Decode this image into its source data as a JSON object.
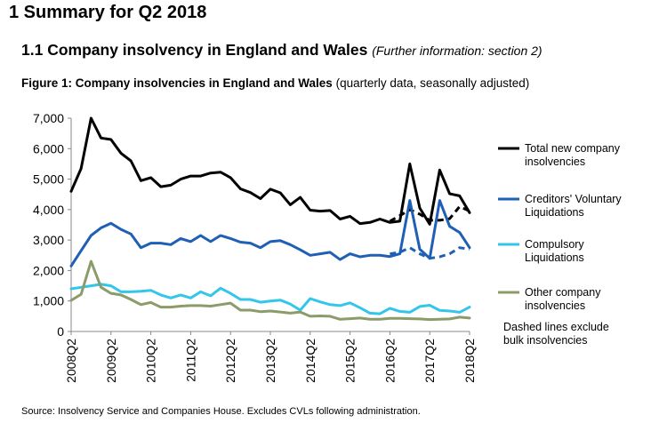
{
  "heading": "1 Summary for Q2 2018",
  "subheading": "1.1 Company insolvency in England and Wales",
  "subheading_note": "(Further information: section 2)",
  "figure_title_bold": "Figure 1: Company insolvencies in England and Wales",
  "figure_title_rest": "(quarterly data, seasonally adjusted)",
  "source": "Source: Insolvency Service and Companies House. Excludes CVLs following administration.",
  "chart_data": {
    "type": "line",
    "x": [
      "2008Q2",
      "2008Q3",
      "2008Q4",
      "2009Q1",
      "2009Q2",
      "2009Q3",
      "2009Q4",
      "2010Q1",
      "2010Q2",
      "2010Q3",
      "2010Q4",
      "2011Q1",
      "2011Q2",
      "2011Q3",
      "2011Q4",
      "2012Q1",
      "2012Q2",
      "2012Q3",
      "2012Q4",
      "2013Q1",
      "2013Q2",
      "2013Q3",
      "2013Q4",
      "2014Q1",
      "2014Q2",
      "2014Q3",
      "2014Q4",
      "2015Q1",
      "2015Q2",
      "2015Q3",
      "2015Q4",
      "2016Q1",
      "2016Q2",
      "2016Q3",
      "2016Q4",
      "2017Q1",
      "2017Q2",
      "2017Q3",
      "2017Q4",
      "2018Q1",
      "2018Q2"
    ],
    "x_tick_labels": [
      "2008Q2",
      "2009Q2",
      "2010Q2",
      "2011Q2",
      "2012Q2",
      "2013Q2",
      "2014Q2",
      "2015Q2",
      "2016Q2",
      "2017Q2",
      "2018Q2"
    ],
    "ylim": [
      0,
      7000
    ],
    "y_ticks": [
      "0",
      "1,000",
      "2,000",
      "3,000",
      "4,000",
      "5,000",
      "6,000",
      "7,000"
    ],
    "grid": false,
    "legend_position": "right",
    "series": [
      {
        "name": "Total new company insolvencies",
        "color": "#000000",
        "style": "solid",
        "values": [
          4600,
          5350,
          7000,
          6350,
          6300,
          5850,
          5600,
          4950,
          5050,
          4750,
          4800,
          5000,
          5100,
          5100,
          5200,
          5230,
          5050,
          4680,
          4560,
          4360,
          4670,
          4550,
          4160,
          4400,
          3980,
          3950,
          3970,
          3690,
          3780,
          3540,
          3580,
          3690,
          3580,
          3620,
          5500,
          4050,
          3520,
          5300,
          4520,
          4450,
          3900
        ]
      },
      {
        "name": "Total new company insolvencies (excluding bulk insolvencies)",
        "color": "#000000",
        "style": "dashed",
        "values": [
          null,
          null,
          null,
          null,
          null,
          null,
          null,
          null,
          null,
          null,
          null,
          null,
          null,
          null,
          null,
          null,
          null,
          null,
          null,
          null,
          null,
          null,
          null,
          null,
          null,
          null,
          null,
          null,
          null,
          null,
          null,
          null,
          3620,
          3800,
          4000,
          3850,
          3650,
          3650,
          3700,
          4100,
          3950
        ]
      },
      {
        "name": "Creditors' Voluntary Liquidations",
        "color": "#1f5fb4",
        "style": "solid",
        "values": [
          2150,
          2650,
          3150,
          3400,
          3550,
          3350,
          3200,
          2750,
          2900,
          2900,
          2850,
          3050,
          2950,
          3150,
          2950,
          3150,
          3050,
          2930,
          2900,
          2750,
          2950,
          2980,
          2850,
          2680,
          2500,
          2550,
          2600,
          2360,
          2550,
          2450,
          2500,
          2500,
          2460,
          2550,
          4300,
          2700,
          2400,
          4300,
          3450,
          3250,
          2750
        ]
      },
      {
        "name": "Creditors' Voluntary Liquidations (excluding bulk insolvencies)",
        "color": "#1f5fb4",
        "style": "dashed",
        "values": [
          null,
          null,
          null,
          null,
          null,
          null,
          null,
          null,
          null,
          null,
          null,
          null,
          null,
          null,
          null,
          null,
          null,
          null,
          null,
          null,
          null,
          null,
          null,
          null,
          null,
          null,
          null,
          null,
          null,
          null,
          null,
          null,
          2550,
          2600,
          2750,
          2550,
          2400,
          2450,
          2550,
          2750,
          2700
        ]
      },
      {
        "name": "Compulsory Liquidations",
        "color": "#33c6ea",
        "style": "solid",
        "values": [
          1400,
          1450,
          1500,
          1550,
          1500,
          1300,
          1300,
          1320,
          1350,
          1200,
          1100,
          1200,
          1100,
          1300,
          1170,
          1420,
          1250,
          1050,
          1050,
          960,
          1000,
          1030,
          900,
          700,
          1080,
          970,
          880,
          850,
          940,
          780,
          600,
          580,
          760,
          660,
          630,
          820,
          860,
          690,
          670,
          630,
          800
        ]
      },
      {
        "name": "Other company insolvencies",
        "color": "#8c9b6a",
        "style": "solid",
        "values": [
          1020,
          1220,
          2300,
          1450,
          1250,
          1200,
          1050,
          880,
          950,
          800,
          800,
          830,
          850,
          850,
          830,
          880,
          930,
          700,
          700,
          650,
          670,
          640,
          600,
          640,
          500,
          510,
          500,
          400,
          420,
          440,
          400,
          400,
          430,
          430,
          420,
          410,
          390,
          400,
          410,
          470,
          440
        ]
      }
    ],
    "legend": [
      {
        "label_lines": [
          "Total new company",
          "insolvencies"
        ],
        "color": "#000000"
      },
      {
        "label_lines": [
          "Creditors' Voluntary",
          "Liquidations"
        ],
        "color": "#1f5fb4"
      },
      {
        "label_lines": [
          "Compulsory",
          "Liquidations"
        ],
        "color": "#33c6ea"
      },
      {
        "label_lines": [
          "Other company",
          "insolvencies"
        ],
        "color": "#8c9b6a"
      }
    ],
    "annotation_lines": [
      "Dashed lines exclude",
      "bulk insolvencies"
    ]
  }
}
